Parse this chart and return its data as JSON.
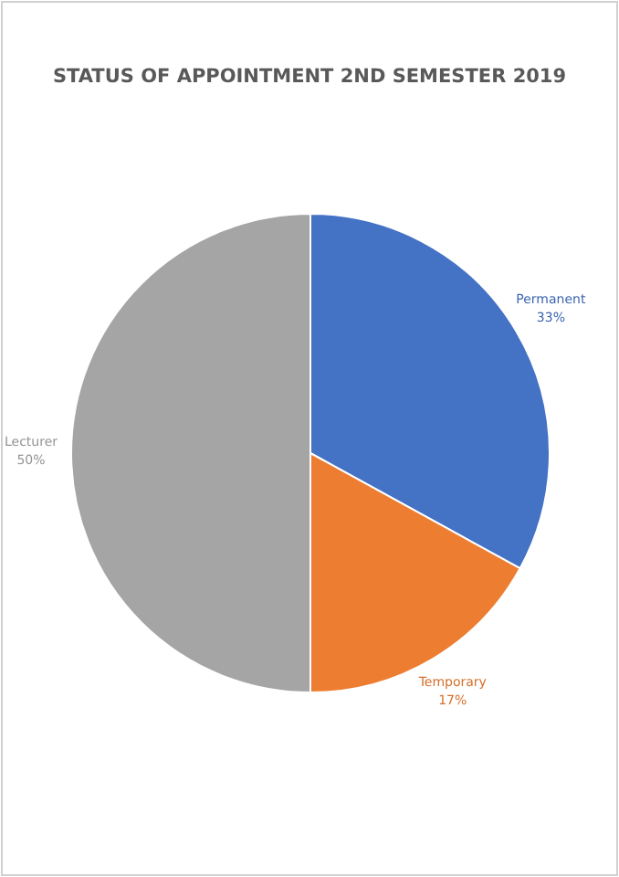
{
  "chart_data": {
    "type": "pie",
    "title": "STATUS OF APPOINTMENT 2ND SEMESTER 2019",
    "categories": [
      "Permanent",
      "Temporary",
      "Lecturer"
    ],
    "values": [
      33,
      17,
      50
    ],
    "colors": [
      "#4472c4",
      "#ed7d31",
      "#a5a5a5"
    ],
    "value_labels": [
      "33%",
      "17%",
      "50%"
    ],
    "legend": false
  }
}
